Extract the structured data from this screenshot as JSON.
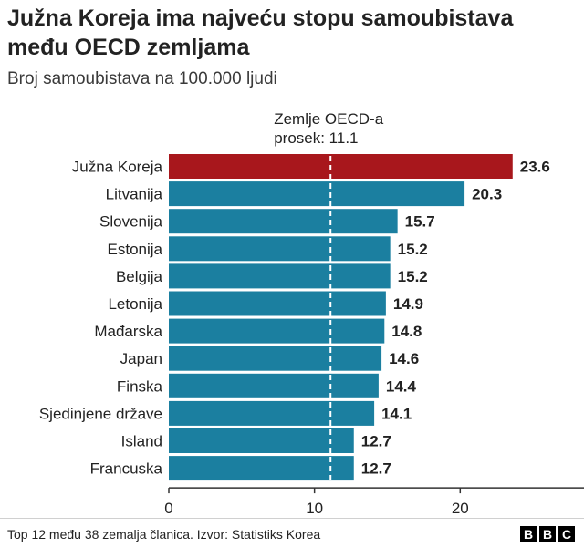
{
  "chart_data": {
    "type": "bar",
    "orientation": "horizontal",
    "title": "Južna Koreja ima najveću stopu samoubistava među OECD zemljama",
    "subtitle": "Broj samoubistava na 100.000 ljudi",
    "categories": [
      "Južna Koreja",
      "Litvanija",
      "Slovenija",
      "Estonija",
      "Belgija",
      "Letonija",
      "Mađarska",
      "Japan",
      "Finska",
      "Sjedinjene države",
      "Island",
      "Francuska"
    ],
    "values": [
      23.6,
      20.3,
      15.7,
      15.2,
      15.2,
      14.9,
      14.8,
      14.6,
      14.4,
      14.1,
      12.7,
      12.7
    ],
    "value_labels": [
      "23.6",
      "20.3",
      "15.7",
      "15.2",
      "15.2",
      "14.9",
      "14.8",
      "14.6",
      "14.4",
      "14.1",
      "12.7",
      "12.7"
    ],
    "xlim": [
      0,
      28.5
    ],
    "x_ticks": [
      0,
      10,
      20
    ],
    "x_tick_labels": [
      "0",
      "10",
      "20"
    ],
    "reference_line": {
      "value": 11.1,
      "label_line1": "Zemlje OECD-a",
      "label_line2": "prosek: 11.1"
    },
    "highlight_index": 0,
    "colors": {
      "highlight": "#a8171c",
      "bar": "#1b7fa0",
      "axis": "#333333",
      "reference": "#ffffff"
    },
    "grid": false,
    "legend": "none"
  },
  "footer": {
    "source": "Top 12 među 38 zemalja članica. Izvor: Statistiks Korea",
    "logo_letters": [
      "B",
      "B",
      "C"
    ]
  }
}
